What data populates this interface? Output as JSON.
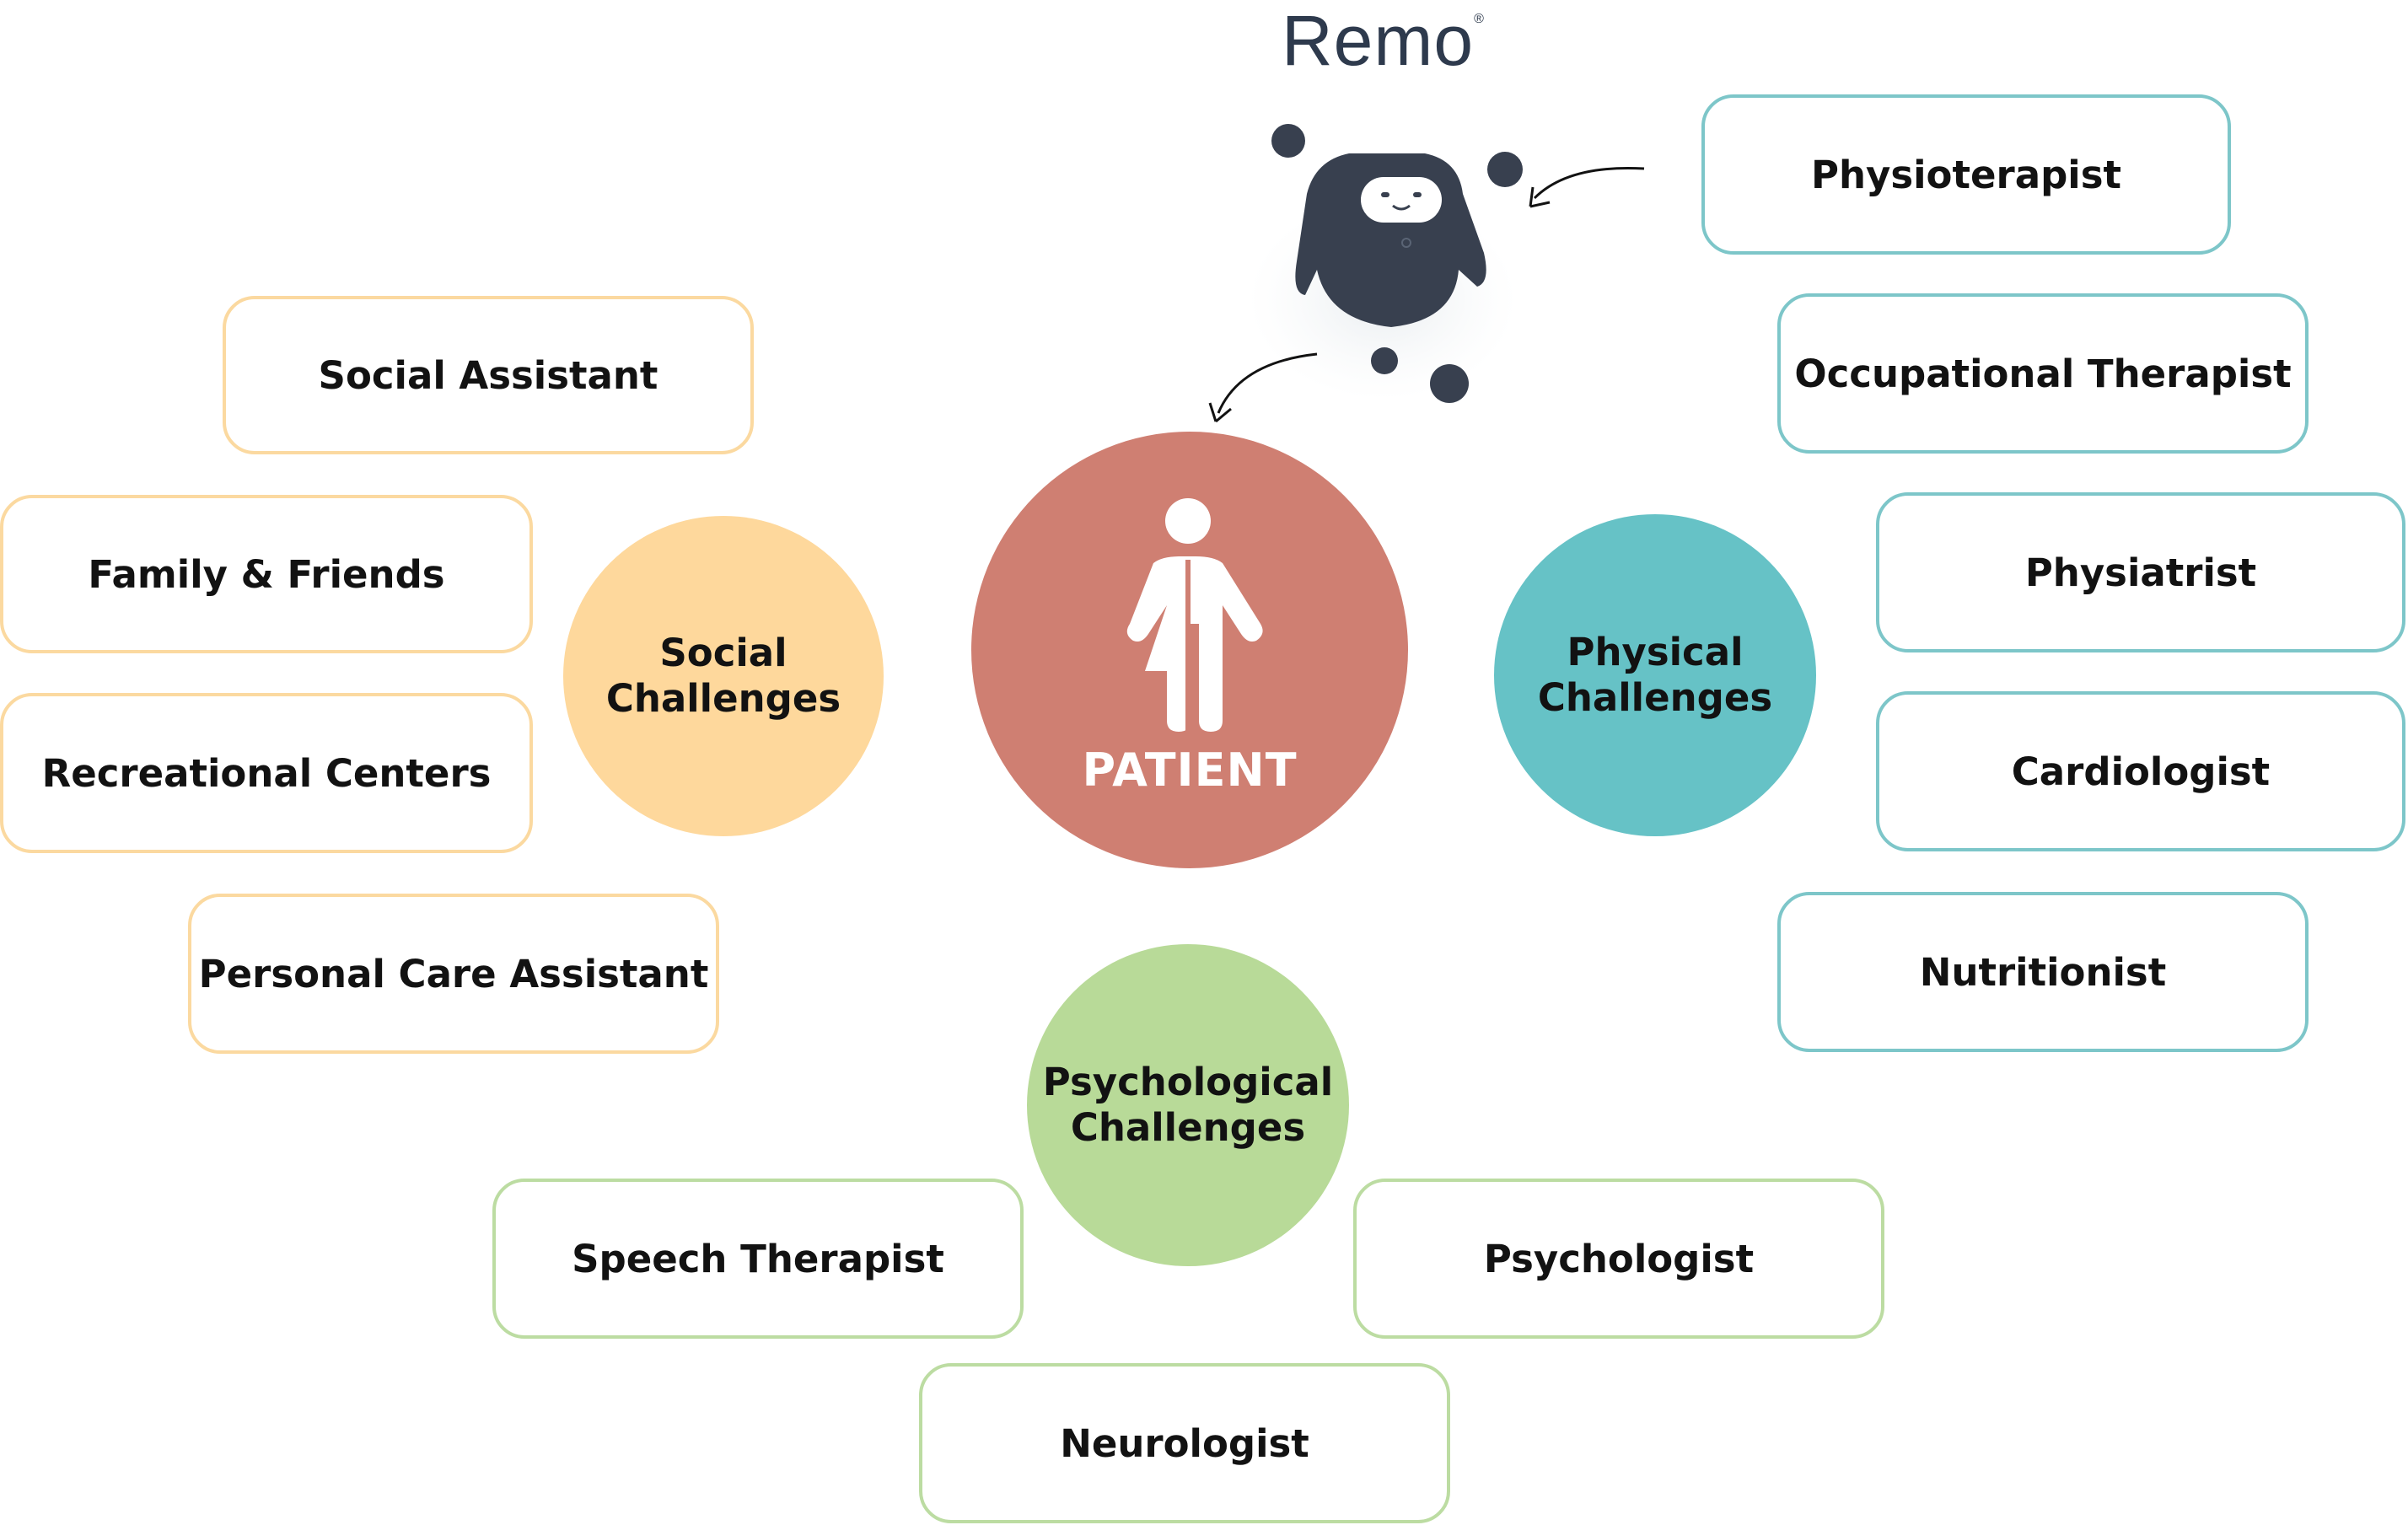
{
  "brand": {
    "name": "Remo",
    "mark": "®"
  },
  "center": {
    "label": "PATIENT",
    "color": "#cf7f72",
    "icon": "patient-figure-icon"
  },
  "categories": {
    "social": {
      "line1": "Social",
      "line2": "Challenges",
      "color": "#fed89c",
      "border": "#fbd9a0"
    },
    "physical": {
      "line1": "Physical",
      "line2": "Challenges",
      "color": "#66c2c6",
      "border": "#7dc6c9"
    },
    "psychological": {
      "line1": "Psychological",
      "line2": "Challenges",
      "color": "#b8da98",
      "border": "#bcdca2"
    }
  },
  "social_roles": [
    "Social Assistant",
    "Family & Friends",
    "Recreational Centers",
    "Personal Care Assistant"
  ],
  "physical_roles": [
    "Physioterapist",
    "Occupational Therapist",
    "Physiatrist",
    "Cardiologist",
    "Nutritionist"
  ],
  "psychological_roles": [
    "Speech Therapist",
    "Psychologist",
    "Neurologist"
  ],
  "robot": {
    "icon": "remo-robot-icon",
    "body_color": "#38404f"
  }
}
